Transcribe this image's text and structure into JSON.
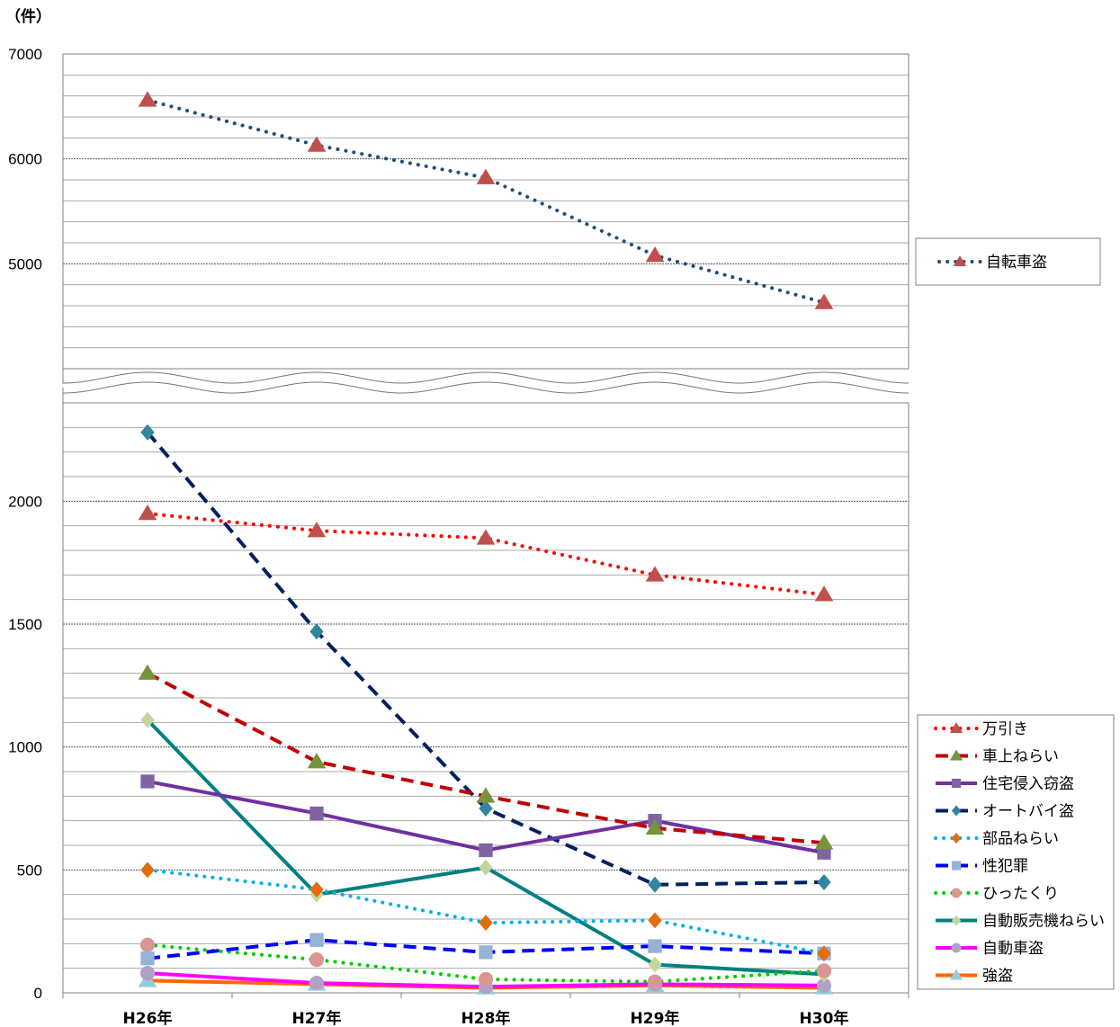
{
  "chart_data": {
    "type": "line",
    "unit_label": "（件）",
    "categories": [
      "H26年",
      "H27年",
      "H28年",
      "H29年",
      "H30年"
    ],
    "upper_panel": {
      "ylim": [
        4000,
        7000
      ],
      "labeled_ticks": [
        5000,
        6000,
        7000
      ],
      "series": [
        {
          "name": "自転車盗",
          "values": [
            6560,
            6130,
            5820,
            5080,
            4630
          ],
          "color": "#1F4E79",
          "dash": "dot",
          "marker": "triangle",
          "marker_color": "#C0504D"
        }
      ]
    },
    "lower_panel": {
      "ylim": [
        0,
        2400
      ],
      "labeled_ticks": [
        0,
        500,
        1000,
        1500,
        2000
      ],
      "series": [
        {
          "name": "万引き",
          "values": [
            1950,
            1880,
            1850,
            1700,
            1620
          ],
          "color": "#FF0000",
          "dash": "dot",
          "marker": "triangle",
          "marker_color": "#C0504D"
        },
        {
          "name": "車上ねらい",
          "values": [
            1300,
            940,
            800,
            670,
            610
          ],
          "color": "#C00000",
          "dash": "dash",
          "marker": "triangle",
          "marker_color": "#77933C"
        },
        {
          "name": "住宅侵入窃盗",
          "values": [
            860,
            730,
            580,
            700,
            570
          ],
          "color": "#7030A0",
          "dash": "solid",
          "marker": "square",
          "marker_color": "#8064A2"
        },
        {
          "name": "オートバイ盗",
          "values": [
            2280,
            1470,
            750,
            440,
            450
          ],
          "color": "#002060",
          "dash": "dash",
          "marker": "diamond",
          "marker_color": "#31859C"
        },
        {
          "name": "部品ねらい",
          "values": [
            500,
            420,
            285,
            295,
            160
          ],
          "color": "#00B0F0",
          "dash": "dot",
          "marker": "diamond",
          "marker_color": "#E46C0A"
        },
        {
          "name": "性犯罪",
          "values": [
            140,
            215,
            165,
            190,
            160
          ],
          "color": "#0000FF",
          "dash": "dash",
          "marker": "square",
          "marker_color": "#95B3D7"
        },
        {
          "name": "ひったくり",
          "values": [
            195,
            135,
            55,
            45,
            90
          ],
          "color": "#00CC00",
          "dash": "dot",
          "marker": "circle",
          "marker_color": "#D99694"
        },
        {
          "name": "自動販売機ねらい",
          "values": [
            1110,
            400,
            510,
            115,
            75
          ],
          "color": "#008080",
          "dash": "solid",
          "marker": "diamond",
          "marker_color": "#C3D69B"
        },
        {
          "name": "自動車盗",
          "values": [
            80,
            40,
            25,
            35,
            30
          ],
          "color": "#FF00FF",
          "dash": "solid",
          "marker": "circle",
          "marker_color": "#B2A1C7"
        },
        {
          "name": "強盗",
          "values": [
            50,
            35,
            20,
            30,
            20
          ],
          "color": "#FF6600",
          "dash": "solid",
          "marker": "triangle",
          "marker_color": "#93CDDD"
        }
      ]
    },
    "grid": true,
    "axis_break": true,
    "legend_placement": "right"
  }
}
